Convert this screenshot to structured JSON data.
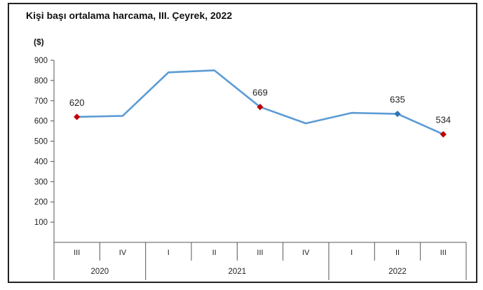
{
  "chart_data": {
    "type": "line",
    "title": "Kişi başı ortalama harcama, III. Çeyrek, 2022",
    "unit_label": "($)",
    "ylim": [
      0,
      900
    ],
    "yticks": [
      100,
      200,
      300,
      400,
      500,
      600,
      700,
      800,
      900
    ],
    "grid": false,
    "categories": [
      "III",
      "IV",
      "I",
      "II",
      "III",
      "IV",
      "I",
      "II",
      "III"
    ],
    "year_groups": [
      {
        "label": "2020",
        "span": 2
      },
      {
        "label": "2021",
        "span": 4
      },
      {
        "label": "2022",
        "span": 3
      }
    ],
    "values": [
      620,
      625,
      840,
      850,
      669,
      588,
      640,
      635,
      534
    ],
    "line_color": "#5b9bd5",
    "highlighted_points": [
      {
        "index": 0,
        "label": "620",
        "color": "#c00000"
      },
      {
        "index": 4,
        "label": "669",
        "color": "#c00000"
      },
      {
        "index": 7,
        "label": "635",
        "color": "#2e75b6"
      },
      {
        "index": 8,
        "label": "534",
        "color": "#c00000"
      }
    ]
  }
}
